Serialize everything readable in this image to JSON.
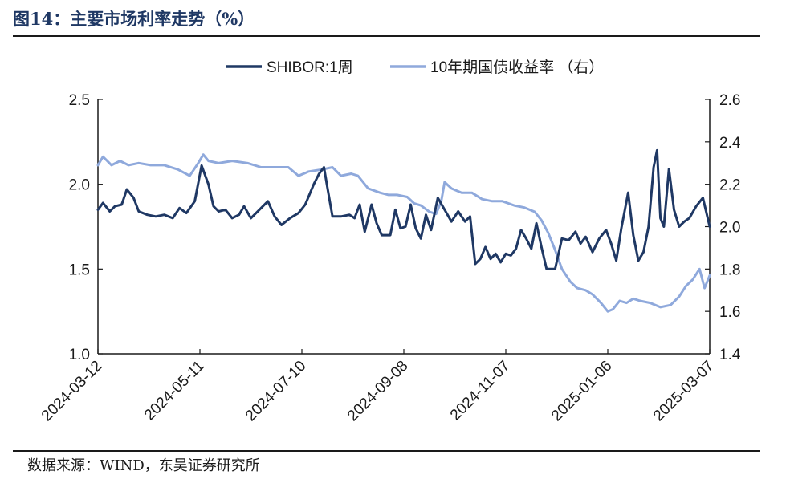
{
  "header": {
    "title": "图14：主要市场利率走势（%）"
  },
  "footer": {
    "source": "数据来源：WIND，东吴证券研究所"
  },
  "chart_data": {
    "type": "line",
    "x_tick_labels": [
      "2024-03-12",
      "2024-05-11",
      "2024-07-10",
      "2024-09-08",
      "2024-11-07",
      "2025-01-06",
      "2025-03-07"
    ],
    "x_range": [
      "2024-03-12",
      "2025-03-07"
    ],
    "y_left": {
      "ylim": [
        1.0,
        2.5
      ],
      "ticks": [
        "1.0",
        "1.5",
        "2.0",
        "2.5"
      ]
    },
    "y_right": {
      "ylim": [
        1.4,
        2.6
      ],
      "ticks": [
        "1.4",
        "1.6",
        "1.8",
        "2.0",
        "2.2",
        "2.4",
        "2.6"
      ]
    },
    "legend_position": "top",
    "grid": false,
    "series": [
      {
        "name": "SHIBOR:1周",
        "axis": "left",
        "color": "#1f3864",
        "points": [
          [
            "2024-03-12",
            1.85
          ],
          [
            "2024-03-15",
            1.89
          ],
          [
            "2024-03-19",
            1.84
          ],
          [
            "2024-03-22",
            1.87
          ],
          [
            "2024-03-26",
            1.88
          ],
          [
            "2024-03-29",
            1.97
          ],
          [
            "2024-04-02",
            1.92
          ],
          [
            "2024-04-05",
            1.84
          ],
          [
            "2024-04-10",
            1.82
          ],
          [
            "2024-04-15",
            1.81
          ],
          [
            "2024-04-20",
            1.82
          ],
          [
            "2024-04-25",
            1.8
          ],
          [
            "2024-04-29",
            1.86
          ],
          [
            "2024-05-03",
            1.83
          ],
          [
            "2024-05-08",
            1.9
          ],
          [
            "2024-05-12",
            2.11
          ],
          [
            "2024-05-16",
            2.0
          ],
          [
            "2024-05-19",
            1.87
          ],
          [
            "2024-05-22",
            1.84
          ],
          [
            "2024-05-26",
            1.85
          ],
          [
            "2024-05-30",
            1.8
          ],
          [
            "2024-06-03",
            1.82
          ],
          [
            "2024-06-06",
            1.87
          ],
          [
            "2024-06-10",
            1.8
          ],
          [
            "2024-06-15",
            1.85
          ],
          [
            "2024-06-20",
            1.9
          ],
          [
            "2024-06-24",
            1.81
          ],
          [
            "2024-06-28",
            1.76
          ],
          [
            "2024-07-03",
            1.8
          ],
          [
            "2024-07-08",
            1.83
          ],
          [
            "2024-07-12",
            1.88
          ],
          [
            "2024-07-17",
            2.0
          ],
          [
            "2024-07-20",
            2.06
          ],
          [
            "2024-07-23",
            2.1
          ],
          [
            "2024-07-25",
            1.98
          ],
          [
            "2024-07-28",
            1.81
          ],
          [
            "2024-08-02",
            1.81
          ],
          [
            "2024-08-07",
            1.82
          ],
          [
            "2024-08-10",
            1.8
          ],
          [
            "2024-08-13",
            1.88
          ],
          [
            "2024-08-16",
            1.72
          ],
          [
            "2024-08-20",
            1.88
          ],
          [
            "2024-08-23",
            1.77
          ],
          [
            "2024-08-26",
            1.7
          ],
          [
            "2024-08-31",
            1.7
          ],
          [
            "2024-09-03",
            1.85
          ],
          [
            "2024-09-06",
            1.74
          ],
          [
            "2024-09-09",
            1.75
          ],
          [
            "2024-09-12",
            1.88
          ],
          [
            "2024-09-15",
            1.74
          ],
          [
            "2024-09-18",
            1.68
          ],
          [
            "2024-09-21",
            1.82
          ],
          [
            "2024-09-24",
            1.73
          ],
          [
            "2024-09-28",
            1.92
          ],
          [
            "2024-10-02",
            1.85
          ],
          [
            "2024-10-06",
            1.78
          ],
          [
            "2024-10-10",
            1.84
          ],
          [
            "2024-10-14",
            1.78
          ],
          [
            "2024-10-17",
            1.81
          ],
          [
            "2024-10-20",
            1.53
          ],
          [
            "2024-10-23",
            1.56
          ],
          [
            "2024-10-26",
            1.63
          ],
          [
            "2024-10-29",
            1.56
          ],
          [
            "2024-11-01",
            1.59
          ],
          [
            "2024-11-04",
            1.54
          ],
          [
            "2024-11-07",
            1.59
          ],
          [
            "2024-11-10",
            1.58
          ],
          [
            "2024-11-13",
            1.62
          ],
          [
            "2024-11-16",
            1.73
          ],
          [
            "2024-11-19",
            1.68
          ],
          [
            "2024-11-22",
            1.62
          ],
          [
            "2024-11-25",
            1.77
          ],
          [
            "2024-11-28",
            1.63
          ],
          [
            "2024-12-01",
            1.5
          ],
          [
            "2024-12-06",
            1.5
          ],
          [
            "2024-12-10",
            1.68
          ],
          [
            "2024-12-14",
            1.67
          ],
          [
            "2024-12-18",
            1.72
          ],
          [
            "2024-12-21",
            1.65
          ],
          [
            "2024-12-24",
            1.69
          ],
          [
            "2024-12-28",
            1.6
          ],
          [
            "2025-01-01",
            1.68
          ],
          [
            "2025-01-05",
            1.73
          ],
          [
            "2025-01-08",
            1.65
          ],
          [
            "2025-01-11",
            1.55
          ],
          [
            "2025-01-14",
            1.74
          ],
          [
            "2025-01-18",
            1.95
          ],
          [
            "2025-01-21",
            1.7
          ],
          [
            "2025-01-24",
            1.55
          ],
          [
            "2025-01-27",
            1.6
          ],
          [
            "2025-01-30",
            1.75
          ],
          [
            "2025-02-02",
            2.1
          ],
          [
            "2025-02-04",
            2.2
          ],
          [
            "2025-02-06",
            1.8
          ],
          [
            "2025-02-08",
            1.75
          ],
          [
            "2025-02-11",
            2.09
          ],
          [
            "2025-02-14",
            1.85
          ],
          [
            "2025-02-17",
            1.75
          ],
          [
            "2025-02-20",
            1.78
          ],
          [
            "2025-02-23",
            1.8
          ],
          [
            "2025-02-27",
            1.87
          ],
          [
            "2025-03-03",
            1.92
          ],
          [
            "2025-03-07",
            1.75
          ]
        ]
      },
      {
        "name": "10年期国债收益率 （右）",
        "axis": "right",
        "color": "#8fa9dc",
        "points": [
          [
            "2024-03-12",
            2.29
          ],
          [
            "2024-03-15",
            2.33
          ],
          [
            "2024-03-20",
            2.29
          ],
          [
            "2024-03-25",
            2.31
          ],
          [
            "2024-03-30",
            2.29
          ],
          [
            "2024-04-05",
            2.3
          ],
          [
            "2024-04-12",
            2.29
          ],
          [
            "2024-04-20",
            2.29
          ],
          [
            "2024-04-28",
            2.27
          ],
          [
            "2024-05-05",
            2.24
          ],
          [
            "2024-05-10",
            2.3
          ],
          [
            "2024-05-13",
            2.34
          ],
          [
            "2024-05-16",
            2.31
          ],
          [
            "2024-05-22",
            2.3
          ],
          [
            "2024-05-30",
            2.31
          ],
          [
            "2024-06-08",
            2.3
          ],
          [
            "2024-06-16",
            2.28
          ],
          [
            "2024-06-24",
            2.28
          ],
          [
            "2024-07-02",
            2.28
          ],
          [
            "2024-07-08",
            2.24
          ],
          [
            "2024-07-14",
            2.26
          ],
          [
            "2024-07-22",
            2.27
          ],
          [
            "2024-07-28",
            2.28
          ],
          [
            "2024-08-02",
            2.24
          ],
          [
            "2024-08-08",
            2.25
          ],
          [
            "2024-08-12",
            2.24
          ],
          [
            "2024-08-18",
            2.18
          ],
          [
            "2024-08-25",
            2.16
          ],
          [
            "2024-08-30",
            2.15
          ],
          [
            "2024-09-04",
            2.15
          ],
          [
            "2024-09-10",
            2.14
          ],
          [
            "2024-09-14",
            2.11
          ],
          [
            "2024-09-18",
            2.1
          ],
          [
            "2024-09-23",
            2.07
          ],
          [
            "2024-09-27",
            2.06
          ],
          [
            "2024-09-30",
            2.12
          ],
          [
            "2024-10-02",
            2.21
          ],
          [
            "2024-10-06",
            2.18
          ],
          [
            "2024-10-12",
            2.16
          ],
          [
            "2024-10-18",
            2.16
          ],
          [
            "2024-10-24",
            2.13
          ],
          [
            "2024-10-30",
            2.12
          ],
          [
            "2024-11-05",
            2.12
          ],
          [
            "2024-11-12",
            2.1
          ],
          [
            "2024-11-18",
            2.09
          ],
          [
            "2024-11-24",
            2.07
          ],
          [
            "2024-11-28",
            2.03
          ],
          [
            "2024-12-02",
            1.97
          ],
          [
            "2024-12-06",
            1.89
          ],
          [
            "2024-12-10",
            1.8
          ],
          [
            "2024-12-15",
            1.74
          ],
          [
            "2024-12-19",
            1.71
          ],
          [
            "2024-12-24",
            1.7
          ],
          [
            "2024-12-28",
            1.68
          ],
          [
            "2025-01-02",
            1.64
          ],
          [
            "2025-01-06",
            1.6
          ],
          [
            "2025-01-09",
            1.61
          ],
          [
            "2025-01-13",
            1.65
          ],
          [
            "2025-01-17",
            1.64
          ],
          [
            "2025-01-21",
            1.66
          ],
          [
            "2025-01-25",
            1.65
          ],
          [
            "2025-01-31",
            1.64
          ],
          [
            "2025-02-06",
            1.62
          ],
          [
            "2025-02-12",
            1.63
          ],
          [
            "2025-02-17",
            1.67
          ],
          [
            "2025-02-21",
            1.72
          ],
          [
            "2025-02-25",
            1.75
          ],
          [
            "2025-03-01",
            1.8
          ],
          [
            "2025-03-04",
            1.71
          ],
          [
            "2025-03-07",
            1.77
          ]
        ]
      }
    ]
  }
}
